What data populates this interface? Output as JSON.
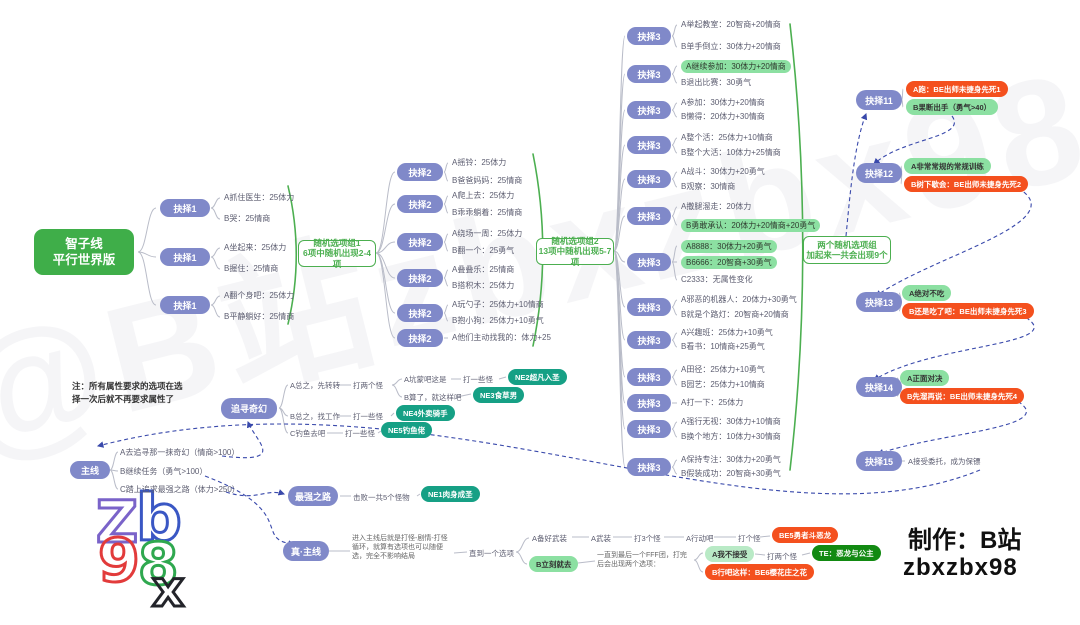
{
  "watermark": "@B站zbxzbx98",
  "root": {
    "line1": "智子线",
    "line2": "平行世界版"
  },
  "note": {
    "line1": "注：所有属性要求的选项在选",
    "line2": "择一次后就不再要求属性了"
  },
  "boxes": {
    "b1": {
      "l1": "随机选项组1",
      "l2": "6项中随机出现2-4项"
    },
    "b2": {
      "l1": "随机选项组2",
      "l2": "13项中随机出现5-7项"
    },
    "b3": {
      "l1": "两个随机选项组",
      "l2": "加起来一共会出现9个"
    }
  },
  "sec1": [
    {
      "label": "抉择1",
      "opts": [
        {
          "t": "A抓住医生：25体力"
        },
        {
          "t": "B哭：25情商"
        }
      ]
    },
    {
      "label": "抉择1",
      "opts": [
        {
          "t": "A坐起来：25体力"
        },
        {
          "t": "B握住：25情商"
        }
      ]
    },
    {
      "label": "抉择1",
      "opts": [
        {
          "t": "A翻个身吧：25体力"
        },
        {
          "t": "B平静躺好：25情商"
        }
      ]
    }
  ],
  "sec2": [
    {
      "label": "抉择2",
      "opts": [
        {
          "t": "A摇铃：25体力"
        },
        {
          "t": "B爸爸妈妈：25情商"
        }
      ]
    },
    {
      "label": "抉择2",
      "opts": [
        {
          "t": "A爬上去：25体力"
        },
        {
          "t": "B乖乖躺着：25情商"
        }
      ]
    },
    {
      "label": "抉择2",
      "opts": [
        {
          "t": "A绕场一周：25体力"
        },
        {
          "t": "B翻一个：25勇气"
        }
      ]
    },
    {
      "label": "抉择2",
      "opts": [
        {
          "t": "A叠叠乐：25情商"
        },
        {
          "t": "B搭积木：25体力"
        }
      ]
    },
    {
      "label": "抉择2",
      "opts": [
        {
          "t": "A玩勺子：25体力+10情商"
        },
        {
          "t": "B抱小狗：25体力+10勇气"
        }
      ]
    },
    {
      "label": "抉择2",
      "opts": [
        {
          "t": "A他们主动找我的：体力+25"
        }
      ]
    }
  ],
  "sec3": [
    {
      "label": "抉择3",
      "opts": [
        {
          "t": "A举起教室：20智商+20情商"
        },
        {
          "t": "B单手倒立：30体力+20情商"
        }
      ]
    },
    {
      "label": "抉择3",
      "opts": [
        {
          "t": "A继续参加：30体力+20情商",
          "hl": true
        },
        {
          "t": "B退出比赛：30勇气"
        }
      ]
    },
    {
      "label": "抉择3",
      "opts": [
        {
          "t": "A参加：30体力+20情商"
        },
        {
          "t": "B懒得：20体力+30情商"
        }
      ]
    },
    {
      "label": "抉择3",
      "opts": [
        {
          "t": "A整个活：25体力+10情商"
        },
        {
          "t": "B整个大活：10体力+25情商"
        }
      ]
    },
    {
      "label": "抉择3",
      "opts": [
        {
          "t": "A战斗：30体力+20勇气"
        },
        {
          "t": "B观察：30情商"
        }
      ]
    },
    {
      "label": "抉择3",
      "opts": [
        {
          "t": "A撒腿溜走：20体力"
        },
        {
          "t": "B勇敢承认：20体力+20情商+20勇气",
          "hl": true
        }
      ]
    },
    {
      "label": "抉择3",
      "opts": [
        {
          "t": "A8888：30体力+20勇气",
          "hl": true
        },
        {
          "t": "B6666：20智商+30勇气",
          "hl": true
        },
        {
          "t": "C2333：无属性变化"
        }
      ]
    },
    {
      "label": "抉择3",
      "opts": [
        {
          "t": "A邪恶的机器人：20体力+30勇气"
        },
        {
          "t": "B就是个路灯：20智商+20情商"
        }
      ]
    },
    {
      "label": "抉择3",
      "opts": [
        {
          "t": "A兴趣班：25体力+10勇气"
        },
        {
          "t": "B看书：10情商+25勇气"
        }
      ]
    },
    {
      "label": "抉择3",
      "opts": [
        {
          "t": "A田径：25体力+10勇气"
        },
        {
          "t": "B园艺：25体力+10情商"
        }
      ]
    },
    {
      "label": "抉择3",
      "opts": [
        {
          "t": "A打一下：25体力"
        }
      ]
    },
    {
      "label": "抉择3",
      "opts": [
        {
          "t": "A强行无视：30体力+10情商"
        },
        {
          "t": "B换个地方：10体力+30情商"
        }
      ]
    },
    {
      "label": "抉择3",
      "opts": [
        {
          "t": "A保持专注：30体力+20勇气"
        },
        {
          "t": "B假装成功：20智商+30勇气"
        }
      ]
    }
  ],
  "right": [
    {
      "label": "抉择11",
      "opts": [
        {
          "t": "A跑：BE出师未捷身先死1",
          "style": "red"
        },
        {
          "t": "B果断出手（勇气>40）",
          "style": "grn"
        }
      ]
    },
    {
      "label": "抉择12",
      "opts": [
        {
          "t": "A非常常规的常规训练",
          "style": "grn"
        },
        {
          "t": "B树下歇会：BE出师未捷身先死2",
          "style": "red"
        }
      ]
    },
    {
      "label": "抉择13",
      "opts": [
        {
          "t": "A绝对不吃",
          "style": "grn"
        },
        {
          "t": "B还是吃了吧：BE出师未捷身先死3",
          "style": "red"
        }
      ]
    },
    {
      "label": "抉择14",
      "opts": [
        {
          "t": "A正面对决",
          "style": "grn"
        },
        {
          "t": "B先溜再说：BE出师未捷身先死4",
          "style": "red"
        }
      ]
    },
    {
      "label": "抉择15",
      "opts": [
        {
          "t": "A接受委托，成为保镖",
          "style": "plain"
        }
      ]
    }
  ],
  "mainline": {
    "label": "主线",
    "opts": [
      {
        "t": "A去追寻那一抹奇幻（情商>100）"
      },
      {
        "t": "B继续任务（勇气>100）"
      },
      {
        "t": "C踏上追求最强之路（体力>250）"
      }
    ]
  },
  "fantasy": {
    "label": "追寻奇幻",
    "a1": "A总之，先转转",
    "a2": "打两个怪",
    "aa1": "A坑蒙吧这是",
    "aa2": "打一些怪",
    "aa3": "NE2超凡入圣",
    "ab1": "B算了，就这样吧",
    "ab2": "NE3食草男",
    "b1": "B总之，找工作",
    "b2": "打一些怪",
    "b3": "NE4外卖骑手",
    "c1": "C钓鱼去吧",
    "c2": "打一些怪",
    "c3": "NE5钓鱼佬"
  },
  "strongest": {
    "label": "最强之路",
    "t1": "击败一共5个怪物",
    "t2": "NE1肉身成圣"
  },
  "truemain": {
    "label": "真·主线",
    "para": "进入主线后就是打怪-剧情-打怪循环，就算有选项也可以随便选，完全不影响结局",
    "until": "直到一个选项",
    "a1": "A备好武装",
    "a2": "A武装",
    "a3": "打3个怪",
    "a4": "A行动吧",
    "a5": "打个怪",
    "a6": "BE5勇者斗恶龙",
    "b1": "B立刻就去",
    "b2": "一直到最后一个FFF团，打完后会出现两个选项：",
    "ba1": "A我不接受",
    "ba2": "打两个怪",
    "ba3": "TE：恶龙与公主",
    "bb1": "B行吧这样：BE6樱花庄之花"
  },
  "credit": {
    "line1": "制作：B站",
    "line2": "zbxzbx98"
  },
  "logo": {
    "l1": "Z",
    "l2": "b",
    "l3": "9",
    "l4": "8",
    "l5": "x"
  },
  "colors": {
    "purple": "#8089c9",
    "green": "#4caf50",
    "rootgreen": "#3fae49",
    "optgreen": "#8ce0a2",
    "red": "#f4501e",
    "teal": "#16a085",
    "tegreen": "#128a12",
    "dblue": "#3949ab",
    "wiregray": "#b9bcc8"
  }
}
